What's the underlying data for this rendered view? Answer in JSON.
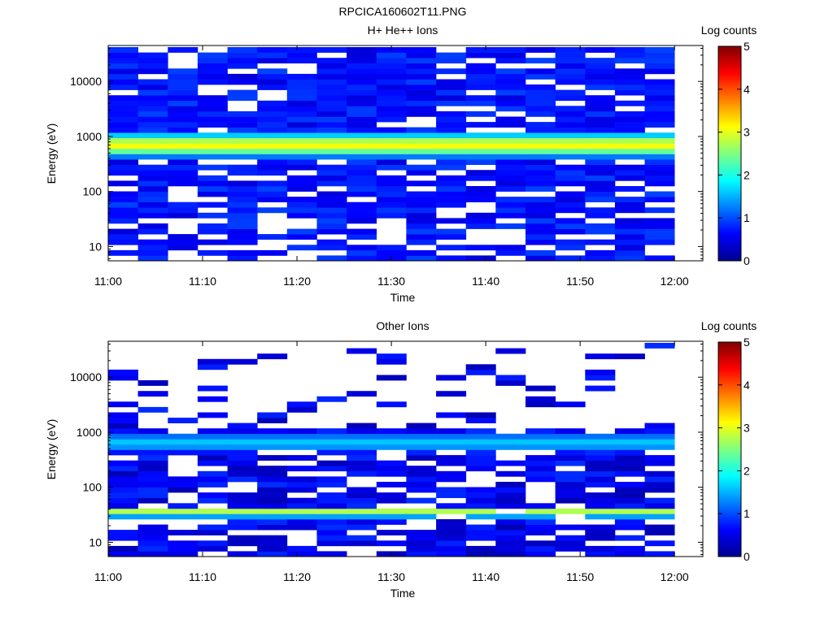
{
  "page_title": "RPCICA160602T11.PNG",
  "chart_data": [
    {
      "type": "heatmap",
      "title": "H+ He++ Ions",
      "xlabel": "Time",
      "ylabel": "Energy (eV)",
      "x_ticks": [
        "11:00",
        "11:10",
        "11:20",
        "11:30",
        "11:40",
        "11:50",
        "12:00"
      ],
      "x_range": [
        "11:00",
        "12:03"
      ],
      "y_scale": "log",
      "y_ticks": [
        10,
        100,
        1000,
        10000
      ],
      "y_range": [
        5.5,
        45000
      ],
      "colorbar": {
        "label": "Log counts",
        "range": [
          0,
          5
        ],
        "ticks": [
          0,
          1,
          2,
          3,
          4,
          5
        ]
      },
      "columns": 19,
      "energy_bins": 40,
      "grid": false,
      "note_values": "log10 counts per time/energy bin; white = no counts",
      "peak_energy_eV": 700,
      "peak_log_counts": 3.1
    },
    {
      "type": "heatmap",
      "title": "Other Ions",
      "xlabel": "Time",
      "ylabel": "Energy (eV)",
      "x_ticks": [
        "11:00",
        "11:10",
        "11:20",
        "11:30",
        "11:40",
        "11:50",
        "12:00"
      ],
      "x_range": [
        "11:00",
        "12:03"
      ],
      "y_scale": "log",
      "y_ticks": [
        10,
        100,
        1000,
        10000
      ],
      "y_range": [
        5.5,
        45000
      ],
      "colorbar": {
        "label": "Log counts",
        "range": [
          0,
          5
        ],
        "ticks": [
          0,
          1,
          2,
          3,
          4,
          5
        ]
      },
      "columns": 19,
      "energy_bins": 40,
      "grid": false,
      "peak_energy_eV": 35,
      "peak_log_counts": 2.9,
      "secondary_band_eV": 650,
      "secondary_band_log_counts": 1.6
    }
  ]
}
